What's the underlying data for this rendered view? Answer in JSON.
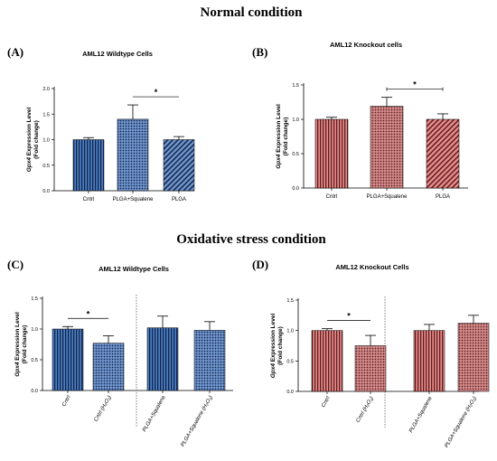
{
  "headings": {
    "top": "Normal condition",
    "bottom": "Oxidative stress condition"
  },
  "colors": {
    "blue_fill": "#4a7fc4",
    "blue_dark": "#12244a",
    "red_fill": "#e98a8a",
    "red_dark": "#5a1e1e"
  },
  "chart_data": [
    {
      "panel": "(A)",
      "type": "bar",
      "title": "AML12 Wildtype Cells",
      "ylabel_lines": [
        "Gpx4 Expression Level",
        "(Fold change)"
      ],
      "ylim": [
        0,
        2.0
      ],
      "yticks": [
        "0.0",
        "0.5",
        "1.0",
        "1.5",
        "2.0"
      ],
      "categories": [
        "Cntrl",
        "PLGA+Squalene",
        "PLGA"
      ],
      "values": [
        1.0,
        1.4,
        1.0
      ],
      "errors": [
        0.04,
        0.28,
        0.06
      ],
      "patterns": [
        "vlines-blue",
        "dots-blue",
        "diag-blue"
      ],
      "significance": [
        {
          "from": 1,
          "to": 2,
          "label": "*"
        }
      ]
    },
    {
      "panel": "(B)",
      "type": "bar",
      "title": "AML12 Knockout cells",
      "ylabel_lines": [
        "Gpx4 Expression Level",
        "(Fold change)"
      ],
      "ylim": [
        0,
        1.5
      ],
      "yticks": [
        "0.0",
        "0.5",
        "1.0",
        "1.5"
      ],
      "categories": [
        "Cntrl",
        "PLGA+Squalene",
        "PLGA"
      ],
      "values": [
        1.0,
        1.19,
        1.0
      ],
      "errors": [
        0.03,
        0.13,
        0.08
      ],
      "patterns": [
        "vlines-red",
        "dots-red",
        "diag-red"
      ],
      "significance": [
        {
          "from": 1,
          "to": 2,
          "label": "*"
        }
      ]
    },
    {
      "panel": "(C)",
      "type": "bar",
      "title": "AML12 Wildtype Cells",
      "ylabel_lines": [
        "Gpx4 Expression Level",
        "(Fold change)"
      ],
      "ylim": [
        0,
        1.5
      ],
      "yticks": [
        "0.0",
        "0.5",
        "1.0",
        "1.5"
      ],
      "categories": [
        "Cntrl",
        "Cntrl (H₂O₂)",
        "PLGA+Squalene",
        "PLGA+Squalene (H₂O₂)"
      ],
      "values": [
        1.0,
        0.77,
        1.02,
        0.98
      ],
      "errors": [
        0.04,
        0.12,
        0.19,
        0.14
      ],
      "patterns": [
        "vlines-blue",
        "dots-blue",
        "vlines-blue",
        "dots-blue"
      ],
      "significance": [
        {
          "from": 0,
          "to": 1,
          "label": "*"
        }
      ]
    },
    {
      "panel": "(D)",
      "type": "bar",
      "title": "AML12 Knockout Cells",
      "ylabel_lines": [
        "Gpx4 Expression Level",
        "(Fold change)"
      ],
      "ylim": [
        0,
        1.5
      ],
      "yticks": [
        "0.0",
        "0.5",
        "1.0",
        "1.5"
      ],
      "categories": [
        "Cntrl",
        "Cntrl (H₂O₂)",
        "PLGA+Squalene",
        "PLGA+Squalene (H₂O₂)"
      ],
      "values": [
        1.0,
        0.75,
        1.0,
        1.12
      ],
      "errors": [
        0.03,
        0.17,
        0.1,
        0.13
      ],
      "patterns": [
        "vlines-red",
        "dots-red",
        "vlines-red",
        "dots-red"
      ],
      "significance": [
        {
          "from": 0,
          "to": 1,
          "label": "*"
        }
      ]
    }
  ]
}
